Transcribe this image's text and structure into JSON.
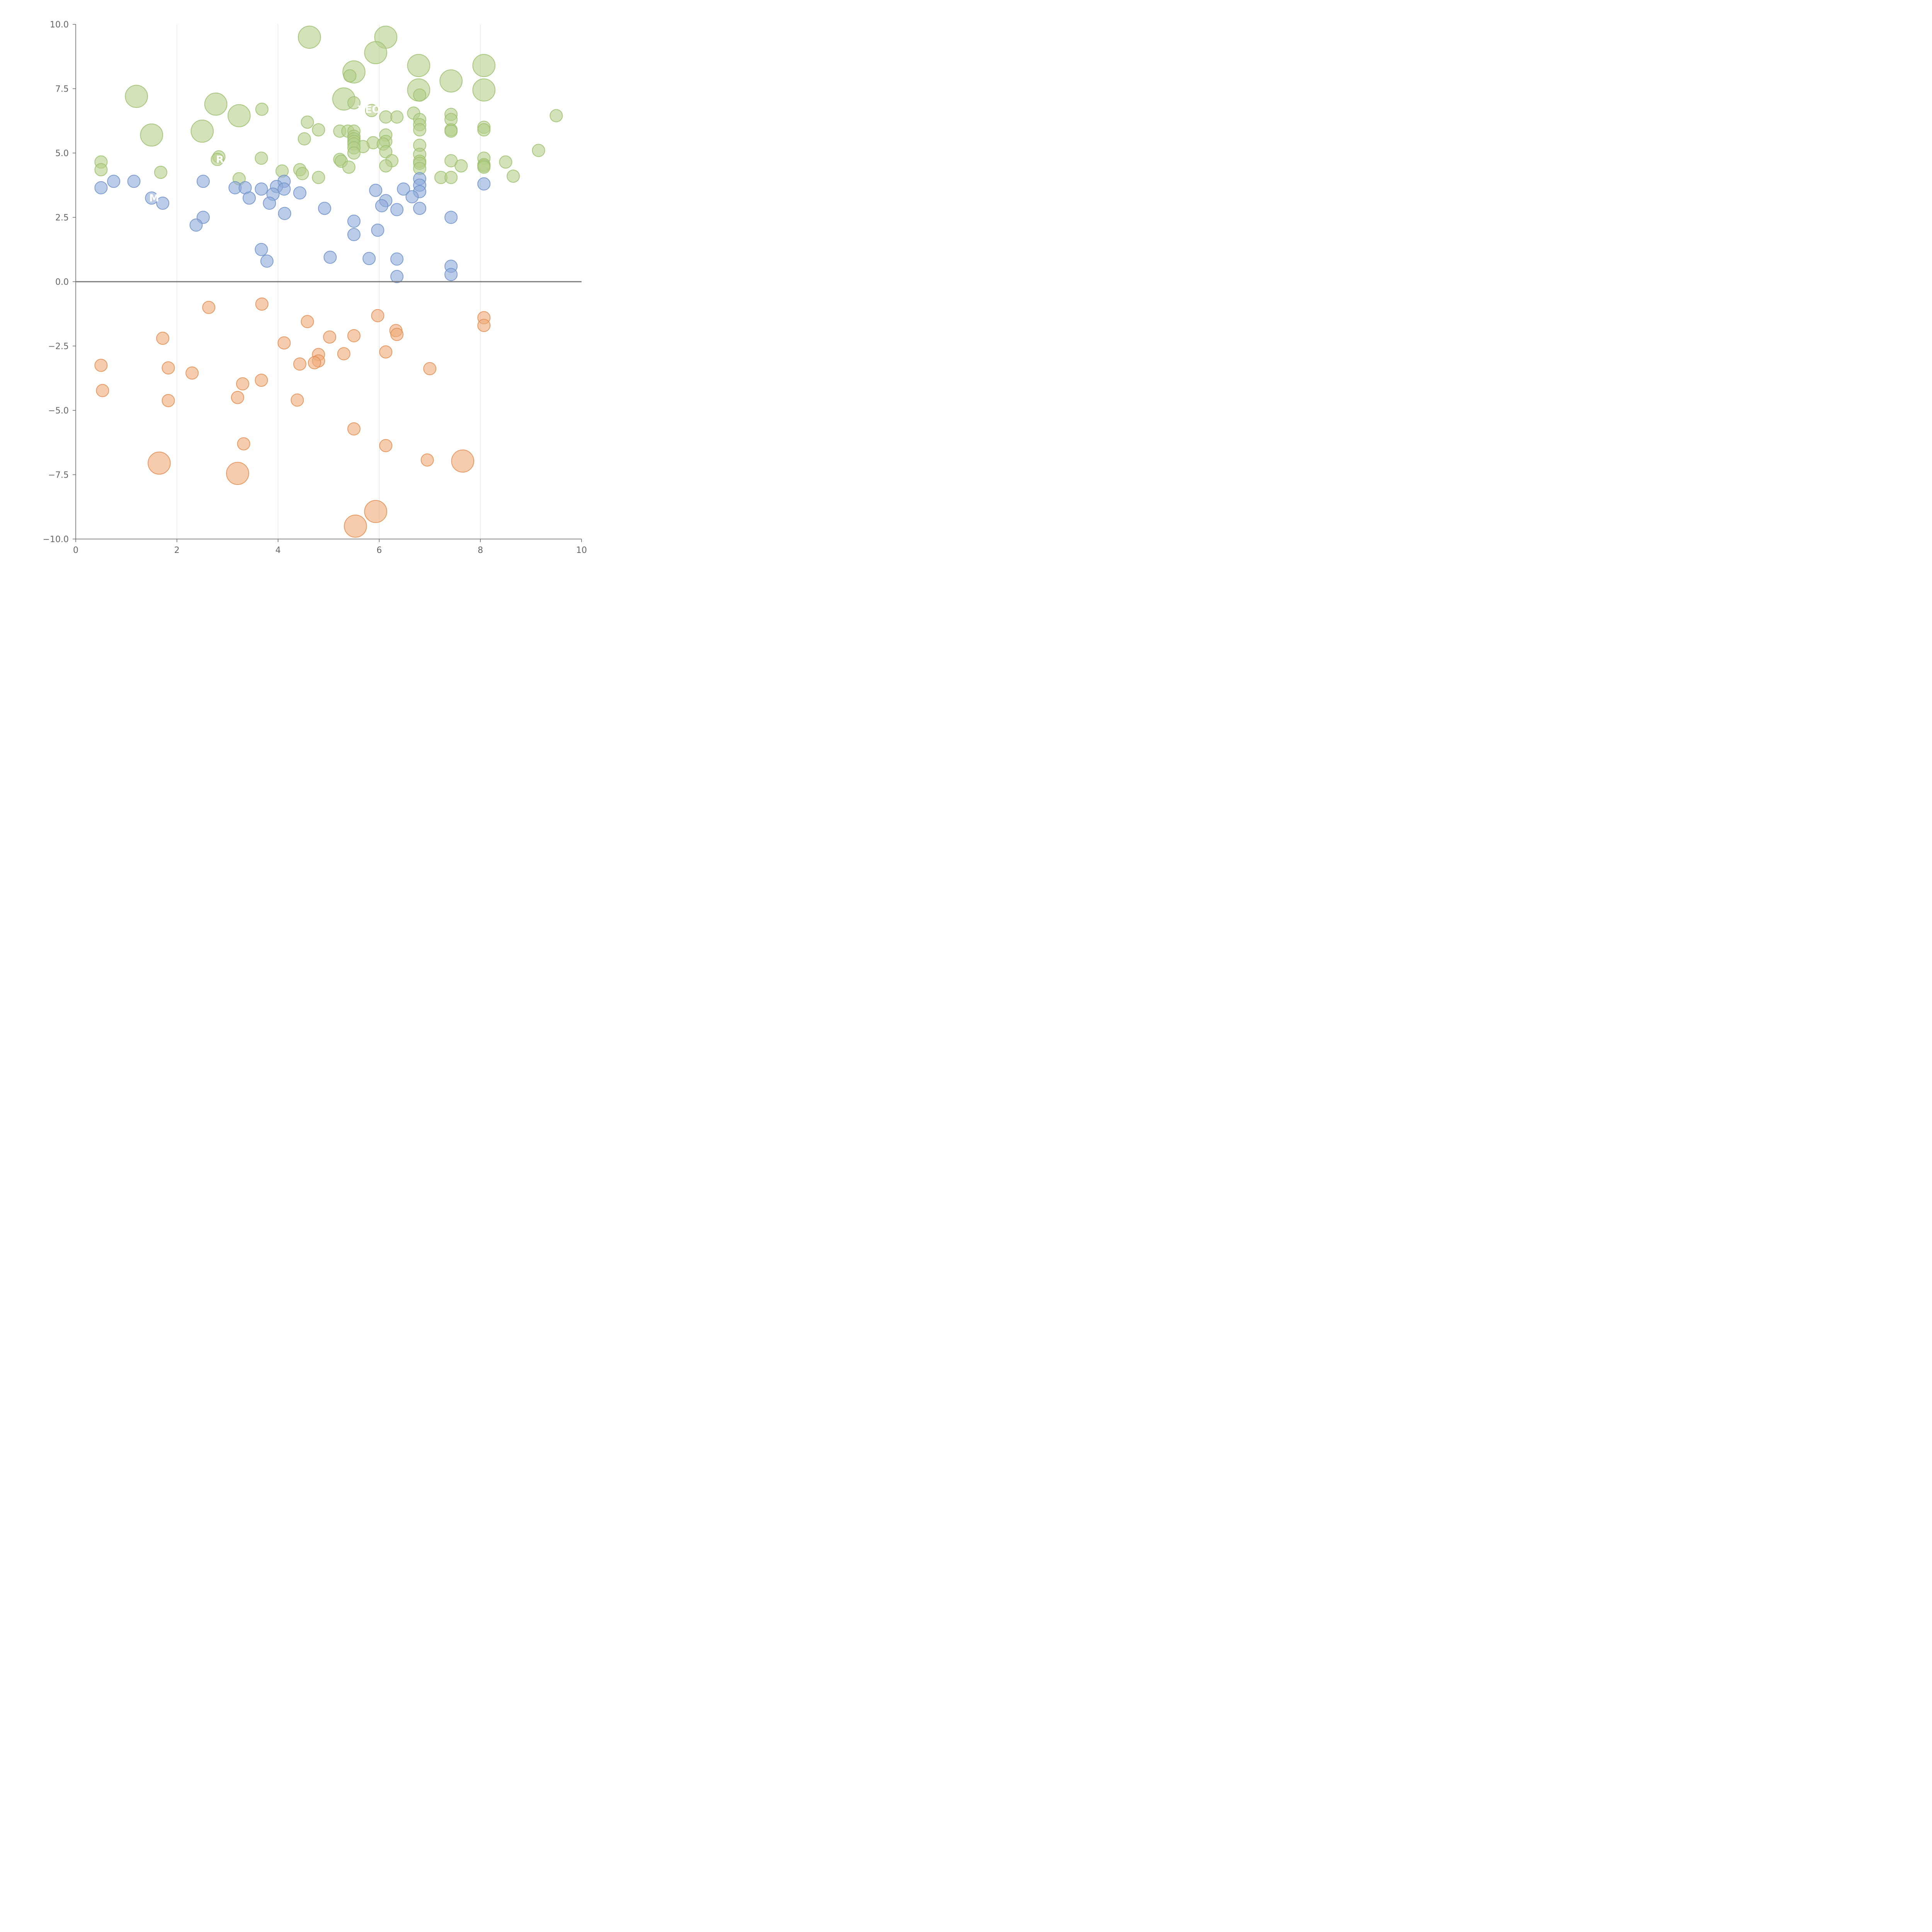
{
  "chart_data": {
    "type": "scatter",
    "title": "",
    "xlabel": "",
    "ylabel": "",
    "xlim": [
      0,
      10
    ],
    "ylim": [
      -10,
      10
    ],
    "x_ticks": [
      0,
      2,
      4,
      6,
      8,
      10
    ],
    "y_ticks": [
      -10,
      -7.5,
      -5,
      -2.5,
      0,
      2.5,
      5,
      7.5,
      10
    ],
    "x_tick_labels": [
      "0",
      "2",
      "4",
      "6",
      "8",
      "10"
    ],
    "y_tick_labels": [
      "−10.0",
      "−7.5",
      "−5.0",
      "−2.5",
      "0.0",
      "2.5",
      "5.0",
      "7.5",
      "10.0"
    ],
    "gridlines_x": [
      2,
      4,
      6,
      8
    ],
    "zero_line": 0,
    "colors": {
      "green": {
        "fill": "#b5cf8a",
        "stroke": "#9cbf6e"
      },
      "blue": {
        "fill": "#8eaad8",
        "stroke": "#6f90c8"
      },
      "orange": {
        "fill": "#eeaa78",
        "stroke": "#e08e52"
      }
    },
    "labels": [
      {
        "text": "YEO",
        "x": 5.8,
        "y": 6.7
      },
      {
        "text": "M",
        "x": 1.55,
        "y": 3.25
      },
      {
        "text": "R",
        "x": 2.85,
        "y": 4.75
      }
    ],
    "series": [
      {
        "name": "green",
        "size_unit": "relative",
        "points": [
          [
            4.62,
            9.5,
            1.8
          ],
          [
            6.13,
            9.5,
            1.8
          ],
          [
            5.93,
            8.9,
            1.8
          ],
          [
            6.78,
            8.4,
            1.8
          ],
          [
            8.07,
            8.4,
            1.8
          ],
          [
            5.5,
            8.15,
            1.8
          ],
          [
            5.42,
            8.0,
            1
          ],
          [
            7.42,
            7.8,
            1.8
          ],
          [
            6.78,
            7.45,
            1.8
          ],
          [
            8.07,
            7.45,
            1.8
          ],
          [
            6.8,
            7.25,
            1
          ],
          [
            1.2,
            7.2,
            1.8
          ],
          [
            5.3,
            7.1,
            1.8
          ],
          [
            5.5,
            6.95,
            1
          ],
          [
            2.77,
            6.9,
            1.8
          ],
          [
            5.85,
            6.65,
            1
          ],
          [
            3.68,
            6.7,
            1
          ],
          [
            6.68,
            6.55,
            1
          ],
          [
            7.42,
            6.5,
            1
          ],
          [
            9.5,
            6.45,
            1
          ],
          [
            3.23,
            6.45,
            1.8
          ],
          [
            6.13,
            6.4,
            1
          ],
          [
            6.35,
            6.4,
            1
          ],
          [
            6.8,
            6.3,
            1
          ],
          [
            7.42,
            6.3,
            1
          ],
          [
            4.58,
            6.2,
            1
          ],
          [
            6.8,
            6.1,
            1
          ],
          [
            8.07,
            6.0,
            1
          ],
          [
            4.8,
            5.9,
            1
          ],
          [
            6.8,
            5.9,
            1
          ],
          [
            7.42,
            5.9,
            1
          ],
          [
            8.07,
            5.9,
            1
          ],
          [
            5.22,
            5.85,
            1
          ],
          [
            5.38,
            5.85,
            1
          ],
          [
            5.5,
            5.85,
            1
          ],
          [
            7.42,
            5.85,
            1
          ],
          [
            2.5,
            5.85,
            1.8
          ],
          [
            1.5,
            5.7,
            1.8
          ],
          [
            6.13,
            5.7,
            1
          ],
          [
            5.5,
            5.65,
            1
          ],
          [
            5.5,
            5.55,
            1
          ],
          [
            4.52,
            5.55,
            1
          ],
          [
            6.13,
            5.45,
            1
          ],
          [
            5.5,
            5.45,
            1
          ],
          [
            5.88,
            5.4,
            1
          ],
          [
            5.5,
            5.35,
            1
          ],
          [
            6.08,
            5.35,
            1
          ],
          [
            6.8,
            5.3,
            1
          ],
          [
            5.68,
            5.25,
            1
          ],
          [
            5.5,
            5.2,
            1
          ],
          [
            9.15,
            5.1,
            1
          ],
          [
            6.13,
            5.05,
            1
          ],
          [
            5.5,
            5.0,
            1
          ],
          [
            6.8,
            4.95,
            1
          ],
          [
            2.83,
            4.85,
            1
          ],
          [
            8.07,
            4.8,
            1
          ],
          [
            3.67,
            4.8,
            1
          ],
          [
            2.8,
            4.75,
            1
          ],
          [
            5.22,
            4.75,
            1
          ],
          [
            0.5,
            4.65,
            1
          ],
          [
            7.42,
            4.7,
            1
          ],
          [
            8.5,
            4.65,
            1
          ],
          [
            6.25,
            4.7,
            1
          ],
          [
            5.25,
            4.68,
            1
          ],
          [
            6.8,
            4.68,
            1
          ],
          [
            6.8,
            4.6,
            1
          ],
          [
            8.07,
            4.55,
            1
          ],
          [
            8.07,
            4.5,
            1
          ],
          [
            7.62,
            4.5,
            1
          ],
          [
            6.13,
            4.5,
            1
          ],
          [
            5.4,
            4.45,
            1
          ],
          [
            8.07,
            4.45,
            1
          ],
          [
            6.8,
            4.4,
            1
          ],
          [
            0.5,
            4.35,
            1
          ],
          [
            4.43,
            4.35,
            1
          ],
          [
            4.08,
            4.3,
            1
          ],
          [
            1.68,
            4.25,
            1
          ],
          [
            4.48,
            4.2,
            1
          ],
          [
            8.65,
            4.1,
            1
          ],
          [
            4.8,
            4.05,
            1
          ],
          [
            7.22,
            4.05,
            1
          ],
          [
            7.42,
            4.05,
            1
          ],
          [
            3.23,
            4.0,
            1
          ]
        ]
      },
      {
        "name": "blue",
        "size_unit": "relative",
        "points": [
          [
            6.8,
            4.0,
            1
          ],
          [
            0.75,
            3.9,
            1
          ],
          [
            1.15,
            3.9,
            1
          ],
          [
            2.52,
            3.9,
            1
          ],
          [
            4.12,
            3.9,
            1
          ],
          [
            8.07,
            3.8,
            1
          ],
          [
            6.8,
            3.75,
            1
          ],
          [
            3.97,
            3.7,
            1
          ],
          [
            0.5,
            3.65,
            1
          ],
          [
            3.15,
            3.65,
            1
          ],
          [
            3.35,
            3.65,
            1
          ],
          [
            3.67,
            3.6,
            1
          ],
          [
            4.12,
            3.6,
            1
          ],
          [
            6.48,
            3.6,
            1
          ],
          [
            5.93,
            3.55,
            1
          ],
          [
            6.8,
            3.5,
            1
          ],
          [
            4.43,
            3.45,
            1
          ],
          [
            3.9,
            3.4,
            1
          ],
          [
            6.65,
            3.3,
            1
          ],
          [
            3.43,
            3.25,
            1
          ],
          [
            1.5,
            3.25,
            1
          ],
          [
            6.13,
            3.15,
            1
          ],
          [
            1.72,
            3.05,
            1
          ],
          [
            3.83,
            3.05,
            1
          ],
          [
            6.05,
            2.95,
            1
          ],
          [
            4.92,
            2.85,
            1
          ],
          [
            6.8,
            2.85,
            1
          ],
          [
            6.35,
            2.8,
            1
          ],
          [
            4.13,
            2.65,
            1
          ],
          [
            2.52,
            2.5,
            1
          ],
          [
            7.42,
            2.5,
            1
          ],
          [
            5.5,
            2.35,
            1
          ],
          [
            2.38,
            2.2,
            1
          ],
          [
            5.97,
            2.0,
            1
          ],
          [
            5.5,
            1.83,
            1
          ],
          [
            3.67,
            1.25,
            1
          ],
          [
            3.78,
            0.8,
            1
          ],
          [
            5.03,
            0.95,
            1
          ],
          [
            5.8,
            0.9,
            1
          ],
          [
            6.35,
            0.88,
            1
          ],
          [
            7.42,
            0.6,
            1
          ],
          [
            7.42,
            0.28,
            1
          ],
          [
            6.35,
            0.2,
            1
          ]
        ]
      },
      {
        "name": "orange",
        "size_unit": "relative",
        "points": [
          [
            3.68,
            -0.87,
            1
          ],
          [
            2.63,
            -1.0,
            1
          ],
          [
            5.97,
            -1.32,
            1
          ],
          [
            8.07,
            -1.4,
            1
          ],
          [
            4.58,
            -1.55,
            1
          ],
          [
            8.07,
            -1.7,
            1
          ],
          [
            6.33,
            -1.9,
            1
          ],
          [
            6.35,
            -2.05,
            1
          ],
          [
            5.5,
            -2.1,
            1
          ],
          [
            5.02,
            -2.15,
            1
          ],
          [
            1.72,
            -2.2,
            1
          ],
          [
            4.12,
            -2.38,
            1
          ],
          [
            6.13,
            -2.73,
            1
          ],
          [
            4.8,
            -2.83,
            1
          ],
          [
            5.3,
            -2.8,
            1
          ],
          [
            4.8,
            -3.08,
            1
          ],
          [
            4.72,
            -3.15,
            1
          ],
          [
            4.43,
            -3.2,
            1
          ],
          [
            0.5,
            -3.25,
            1
          ],
          [
            1.83,
            -3.35,
            1
          ],
          [
            7.0,
            -3.38,
            1
          ],
          [
            2.3,
            -3.55,
            1
          ],
          [
            3.67,
            -3.83,
            1
          ],
          [
            3.3,
            -3.97,
            1
          ],
          [
            0.53,
            -4.23,
            1
          ],
          [
            3.2,
            -4.5,
            1
          ],
          [
            4.38,
            -4.6,
            1
          ],
          [
            1.83,
            -4.62,
            1
          ],
          [
            5.5,
            -5.72,
            1
          ],
          [
            3.32,
            -6.3,
            1
          ],
          [
            6.13,
            -6.37,
            1
          ],
          [
            6.95,
            -6.93,
            1
          ],
          [
            7.65,
            -6.97,
            1.8
          ],
          [
            1.65,
            -7.05,
            1.8
          ],
          [
            3.2,
            -7.45,
            1.8
          ],
          [
            5.93,
            -8.93,
            1.8
          ],
          [
            5.53,
            -9.5,
            1.8
          ]
        ]
      }
    ]
  }
}
